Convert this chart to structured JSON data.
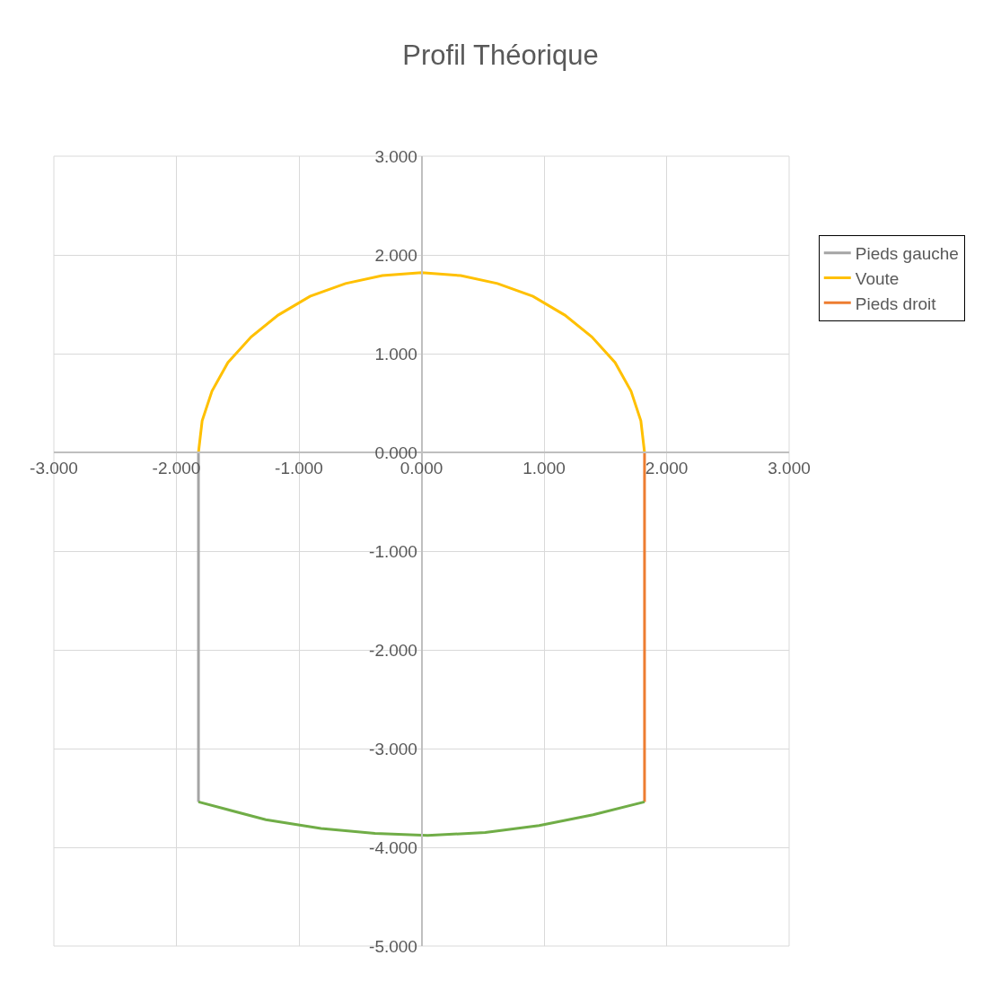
{
  "chart_data": {
    "type": "line",
    "title": "Profil Théorique",
    "series": [
      {
        "name": "Pieds gauche",
        "color": "#a5a5a5",
        "x": [
          -1.82,
          -1.82
        ],
        "values": [
          0,
          -3.54
        ]
      },
      {
        "name": "Voute",
        "color": "#ffc000",
        "x": [
          -1.82,
          -1.79,
          -1.71,
          -1.58,
          -1.39,
          -1.17,
          -0.91,
          -0.62,
          -0.32,
          0,
          0.32,
          0.62,
          0.91,
          1.17,
          1.39,
          1.58,
          1.71,
          1.79,
          1.82
        ],
        "values": [
          0,
          0.32,
          0.62,
          0.91,
          1.17,
          1.39,
          1.58,
          1.71,
          1.79,
          1.82,
          1.79,
          1.71,
          1.58,
          1.39,
          1.17,
          0.91,
          0.62,
          0.32,
          0
        ]
      },
      {
        "name": "Pieds droit",
        "color": "#ed7d31",
        "x": [
          1.82,
          1.82
        ],
        "values": [
          0,
          -3.54
        ]
      },
      {
        "color": "#70ad47",
        "x": [
          -1.82,
          -1.27,
          -0.82,
          -0.38,
          0.05,
          0.52,
          0.96,
          1.4,
          1.82
        ],
        "values": [
          -3.54,
          -3.72,
          -3.81,
          -3.86,
          -3.88,
          -3.85,
          -3.78,
          -3.67,
          -3.54
        ]
      }
    ],
    "xlim": [
      -3,
      3
    ],
    "ylim": [
      -5,
      3
    ],
    "xticks": [
      {
        "value": -3,
        "label": "-3.000"
      },
      {
        "value": -2,
        "label": "-2.000"
      },
      {
        "value": -1,
        "label": "-1.000"
      },
      {
        "value": 0,
        "label": "0.000"
      },
      {
        "value": 1,
        "label": "1.000"
      },
      {
        "value": 2,
        "label": "2.000"
      },
      {
        "value": 3,
        "label": "3.000"
      }
    ],
    "yticks": [
      {
        "value": -5,
        "label": "-5.000"
      },
      {
        "value": -4,
        "label": "-4.000"
      },
      {
        "value": -3,
        "label": "-3.000"
      },
      {
        "value": -2,
        "label": "-2.000"
      },
      {
        "value": -1,
        "label": "-1.000"
      },
      {
        "value": 0,
        "label": "0.000"
      },
      {
        "value": 1,
        "label": "1.000"
      },
      {
        "value": 2,
        "label": "2.000"
      },
      {
        "value": 3,
        "label": "3.000"
      }
    ],
    "grid": true,
    "legend": "right",
    "marker": "none",
    "line_style": "solid"
  }
}
